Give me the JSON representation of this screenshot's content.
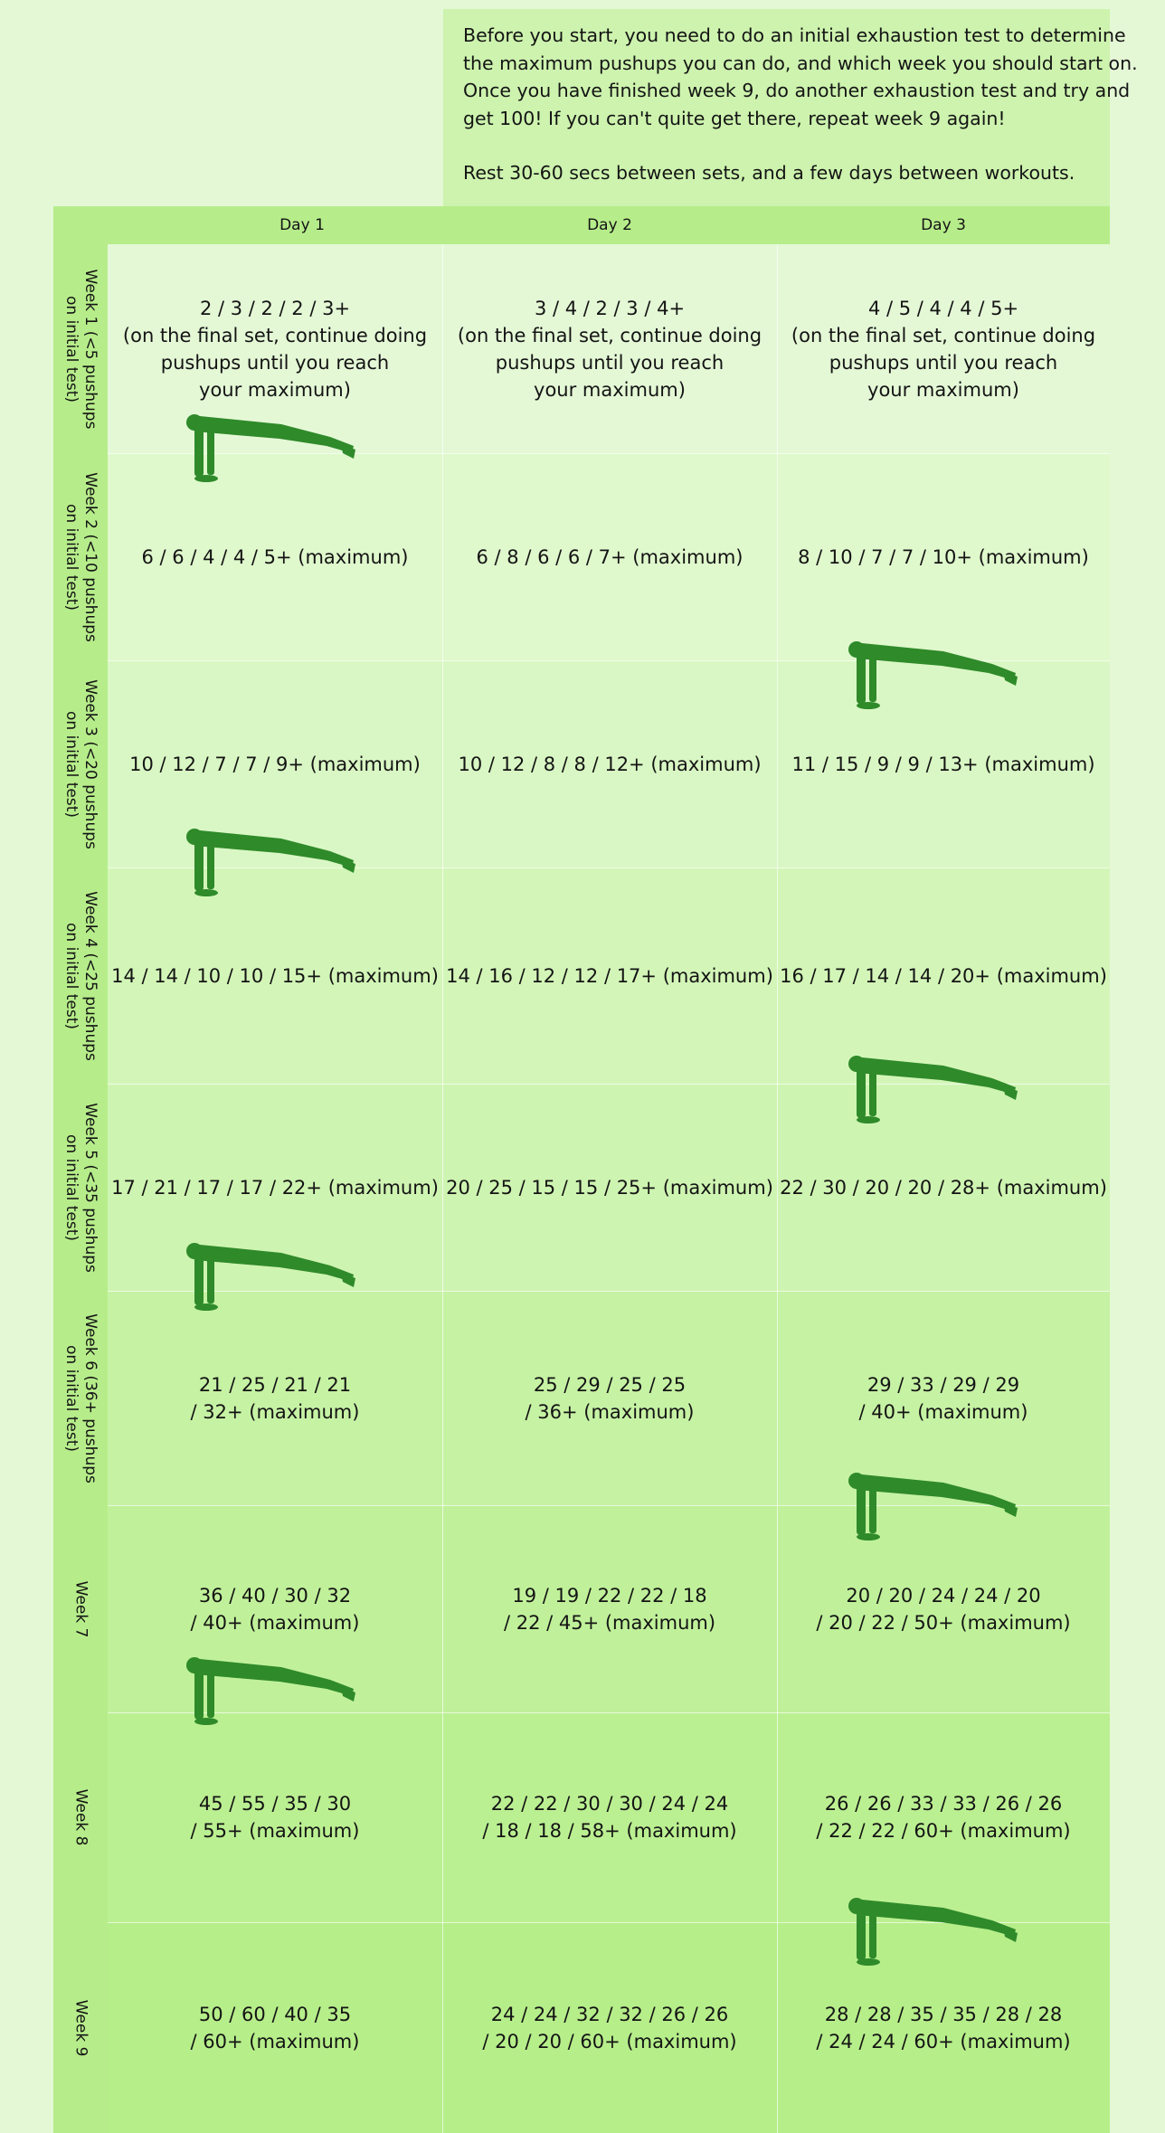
{
  "intro": {
    "paragraph_1": "Before you start, you need to do an initial exhaustion test to determine\nthe maximum pushups you can do, and which week you should start on.\nOnce you have finished week 9, do another exhaustion test and try and\nget 100! If you can't quite get there, repeat week 9 again!",
    "paragraph_2": "Rest 30-60 secs between sets, and a few days between workouts."
  },
  "headers": {
    "day1": "Day 1",
    "day2": "Day 2",
    "day3": "Day 3"
  },
  "colors": {
    "header_bg": "#b6ed8a",
    "row_bg": [
      "#e4f8d6",
      "#dff8cc",
      "#d9f7c4",
      "#d3f6b8",
      "#cef4b1",
      "#c6f2a4",
      "#c0f19a",
      "#bbf092",
      "#b6ee8a"
    ],
    "figure": "#2f8a2a"
  },
  "weeks": [
    {
      "label": "Week 1 (<5 pushups\non initial test)",
      "day1": "2 / 3 / 2 / 2 / 3+\n(on the final set, continue doing\npushups until you reach\nyour maximum)",
      "day2": "3 / 4 / 2 / 3 / 4+\n(on the final set, continue doing\npushups until you reach\nyour maximum)",
      "day3": "4 / 5 / 4 / 4 / 5+\n(on the final set, continue doing\npushups until you reach\nyour maximum)"
    },
    {
      "label": "Week 2 (<10 pushups\non initial test)",
      "day1": "6 / 6 / 4 / 4 / 5+ (maximum)",
      "day2": "6 / 8 / 6 / 6 / 7+ (maximum)",
      "day3": "8 / 10 / 7 / 7 / 10+ (maximum)"
    },
    {
      "label": "Week 3 (<20 pushups\non initial test)",
      "day1": "10 / 12 / 7 / 7 / 9+ (maximum)",
      "day2": "10 / 12 / 8 / 8 / 12+ (maximum)",
      "day3": "11 / 15 / 9 / 9 / 13+ (maximum)"
    },
    {
      "label": "Week 4 (<25 pushups\non initial test)",
      "day1": "14 / 14 / 10 / 10 / 15+ (maximum)",
      "day2": "14 / 16 / 12 / 12 / 17+ (maximum)",
      "day3": "16 / 17 / 14 / 14 / 20+ (maximum)"
    },
    {
      "label": "Week 5 (<35 pushups\non initial test)",
      "day1": "17 / 21 / 17 / 17 / 22+ (maximum)",
      "day2": "20 / 25 / 15 / 15 / 25+ (maximum)",
      "day3": "22 / 30 / 20 / 20 / 28+ (maximum)"
    },
    {
      "label": "Week 6 (36+ pushups\non initial test)",
      "day1": "21 / 25 / 21 / 21\n/ 32+ (maximum)",
      "day2": "25 / 29 / 25 / 25\n/ 36+ (maximum)",
      "day3": "29 / 33 / 29 / 29\n/ 40+ (maximum)"
    },
    {
      "label": "Week 7",
      "day1": "36 / 40 / 30 / 32\n/ 40+ (maximum)",
      "day2": "19 / 19 / 22 / 22 / 18\n/ 22 / 45+ (maximum)",
      "day3": "20 / 20 / 24 / 24 / 20\n/ 20 / 22 / 50+ (maximum)"
    },
    {
      "label": "Week 8",
      "day1": "45 / 55 / 35 / 30\n/ 55+ (maximum)",
      "day2": "22 / 22 / 30 / 30 / 24 / 24\n/ 18 / 18 / 58+ (maximum)",
      "day3": "26 / 26 / 33 / 33 / 26 / 26\n/ 22 / 22 / 60+ (maximum)"
    },
    {
      "label": "Week 9",
      "day1": "50 / 60 / 40 / 35\n/ 60+ (maximum)",
      "day2": "24 / 24 / 32 / 32 / 26 / 26\n/ 20 / 20 / 60+ (maximum)",
      "day3": "28 / 28 / 35 / 35 / 28 / 28\n/ 24 / 24 / 60+ (maximum)"
    }
  ],
  "icons": {
    "figure": "pushup-figure-icon"
  }
}
